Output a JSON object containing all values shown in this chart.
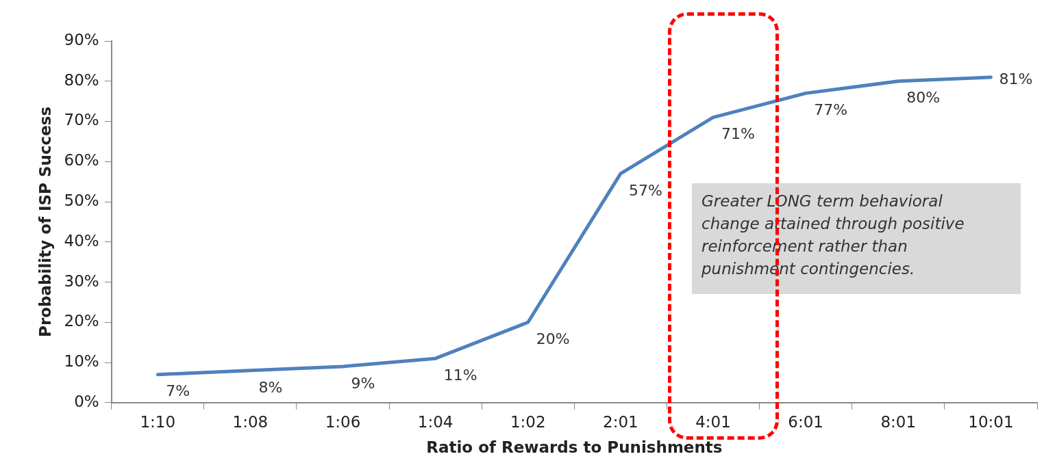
{
  "chart_data": {
    "type": "line",
    "xlabel": "Ratio of Rewards to Punishments",
    "ylabel": "Probability of ISP Success",
    "categories": [
      "1:10",
      "1:08",
      "1:06",
      "1:04",
      "1:02",
      "2:01",
      "4:01",
      "6:01",
      "8:01",
      "10:01"
    ],
    "series": [
      {
        "color": "#4f81bd",
        "values": [
          7,
          8,
          9,
          11,
          20,
          57,
          71,
          77,
          80,
          81
        ],
        "value_labels": [
          "7%",
          "8%",
          "9%",
          "11%",
          "20%",
          "57%",
          "71%",
          "77%",
          "80%",
          "81%"
        ]
      }
    ],
    "ylim": [
      0,
      90
    ],
    "yticks": [
      {
        "value": 0,
        "label": "0%"
      },
      {
        "value": 10,
        "label": "10%"
      },
      {
        "value": 20,
        "label": "20%"
      },
      {
        "value": 30,
        "label": "30%"
      },
      {
        "value": 40,
        "label": "40%"
      },
      {
        "value": 50,
        "label": "50%"
      },
      {
        "value": 60,
        "label": "60%"
      },
      {
        "value": 70,
        "label": "70%"
      },
      {
        "value": 80,
        "label": "80%"
      },
      {
        "value": 90,
        "label": "90%"
      }
    ],
    "annotations": [
      "Greater LONG term behavioral change attained through positive reinforcement rather than punishment contingencies."
    ],
    "grid": false,
    "legend": false,
    "marker": "none",
    "line_style": "solid"
  }
}
